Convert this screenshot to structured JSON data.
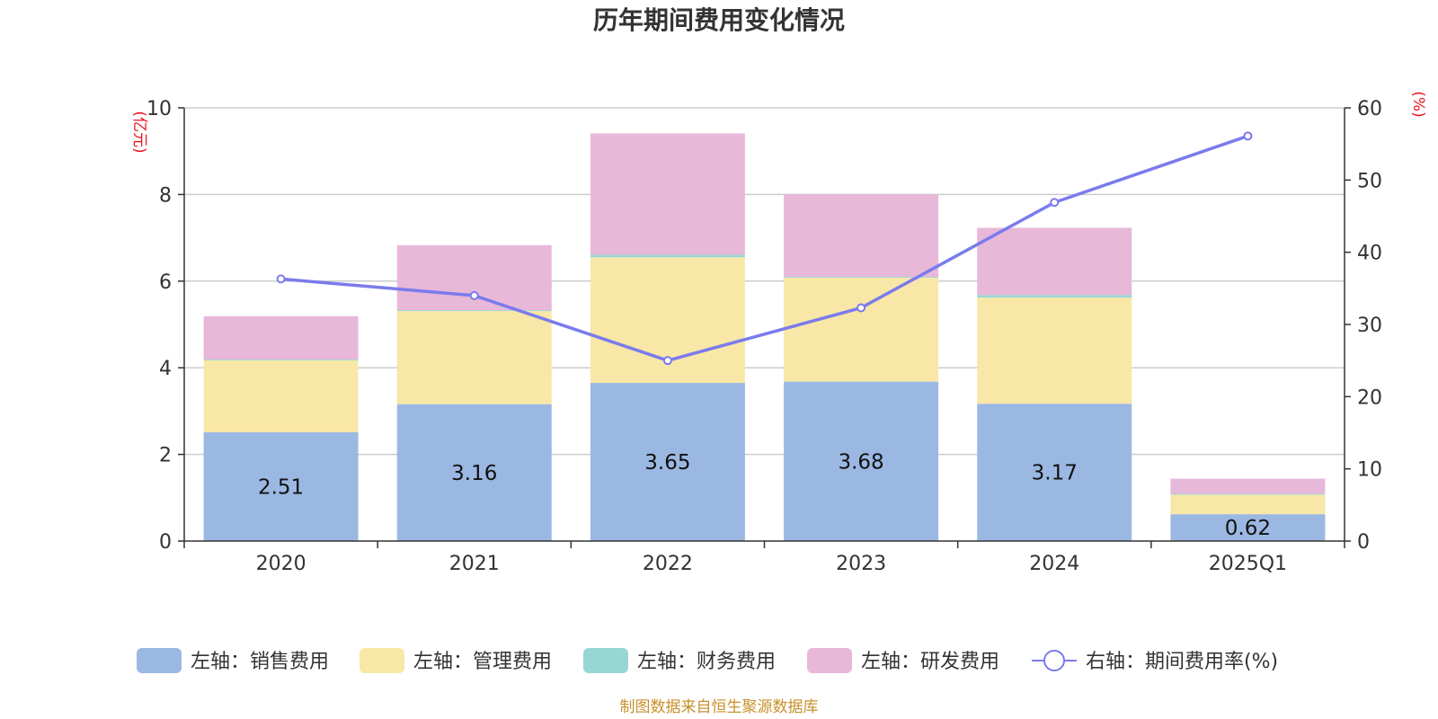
{
  "chart_data": {
    "type": "bar",
    "title": "历年期间费用变化情况",
    "categories": [
      "2020",
      "2021",
      "2022",
      "2023",
      "2024",
      "2025Q1"
    ],
    "left_axis": {
      "unit": "(亿元)",
      "ylim": [
        0,
        10
      ],
      "ticks": [
        0,
        2,
        4,
        6,
        8,
        10
      ]
    },
    "right_axis": {
      "unit": "(%)",
      "ylim": [
        0,
        60
      ],
      "ticks": [
        0,
        10,
        20,
        30,
        40,
        50,
        60
      ]
    },
    "series": [
      {
        "name": "左轴：销售费用",
        "kind": "bar",
        "color": "#9bb8e2",
        "values": [
          2.51,
          3.16,
          3.65,
          3.68,
          3.17,
          0.62
        ],
        "labels": [
          "2.51",
          "3.16",
          "3.65",
          "3.68",
          "3.17",
          "0.62"
        ]
      },
      {
        "name": "左轴：管理费用",
        "kind": "bar",
        "color": "#f8e7a7",
        "values": [
          1.66,
          2.15,
          2.9,
          2.4,
          2.45,
          0.45
        ]
      },
      {
        "name": "左轴：财务费用",
        "kind": "bar",
        "color": "#98d6d6",
        "values": [
          0.02,
          0.02,
          0.06,
          0.02,
          0.06,
          0.02
        ]
      },
      {
        "name": "左轴：研发费用",
        "kind": "bar",
        "color": "#e8b8d9",
        "values": [
          1.0,
          1.5,
          2.8,
          1.9,
          1.55,
          0.35
        ]
      },
      {
        "name": "右轴：期间费用率(%)",
        "kind": "line",
        "color": "#7b7bec",
        "values": [
          36.3,
          34.0,
          25.0,
          32.3,
          46.9,
          56.1
        ]
      }
    ],
    "grid": true,
    "legend_position": "bottom"
  },
  "footer": {
    "source": "制图数据来自恒生聚源数据库"
  }
}
